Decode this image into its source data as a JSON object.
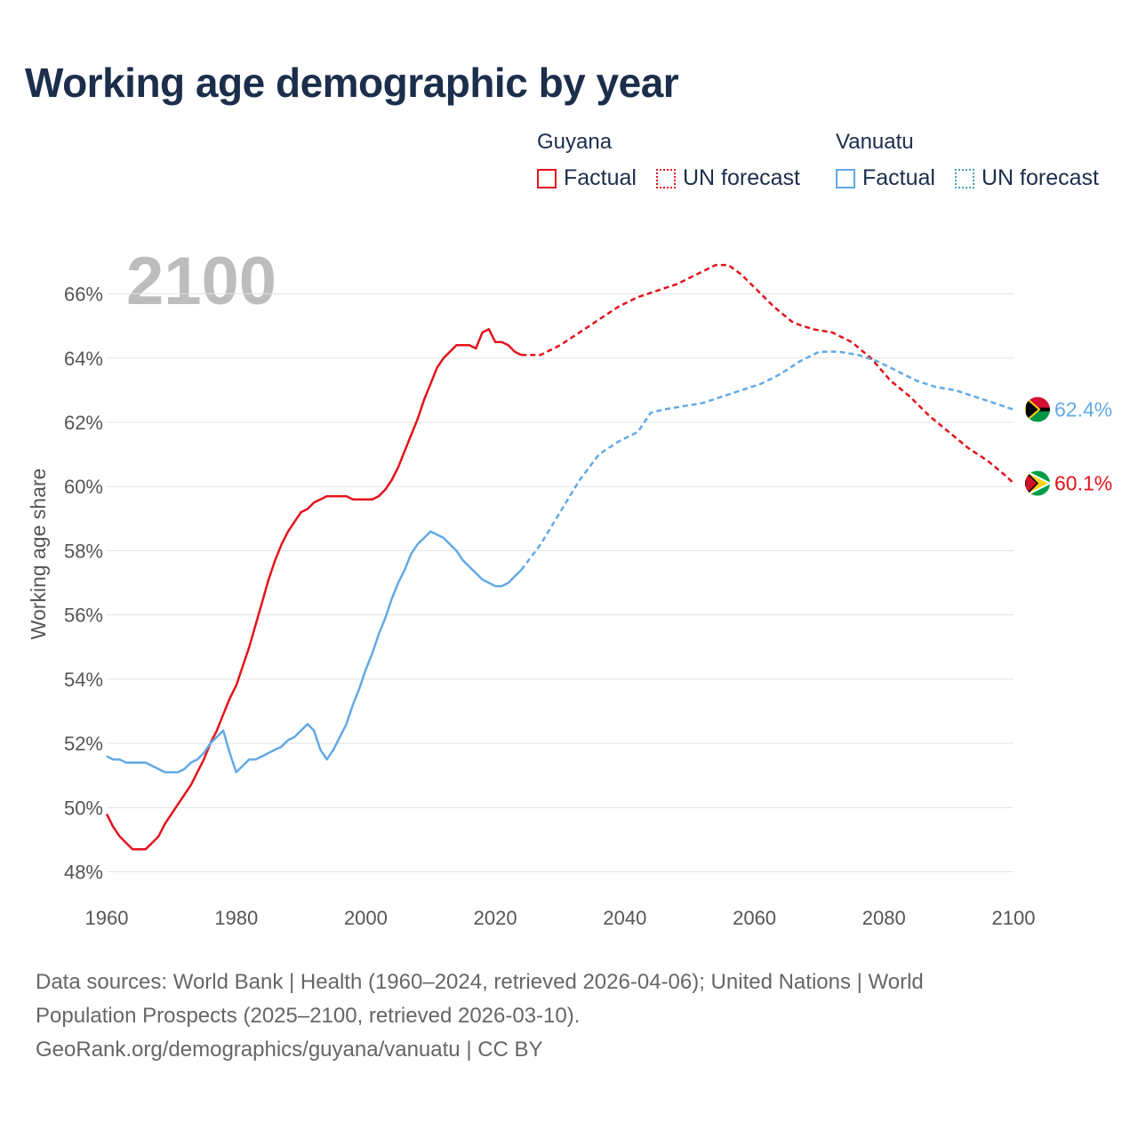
{
  "title": "Working age demographic by year",
  "legend": {
    "groups": [
      {
        "name": "Guyana",
        "factual_label": "Factual",
        "forecast_label": "UN forecast",
        "color": "#e3131b"
      },
      {
        "name": "Vanuatu",
        "factual_label": "Factual",
        "forecast_label": "UN forecast",
        "color": "#63a9e5"
      }
    ]
  },
  "footer": {
    "line1": "Data sources: World Bank | Health (1960–2024, retrieved 2026-04-06); United Nations | World",
    "line2": "Population Prospects (2025–2100, retrieved 2026-03-10).",
    "line3": "GeoRank.org/demographics/guyana/vanuatu | CC BY"
  },
  "chart_data": {
    "type": "line",
    "title": "Working age demographic by year",
    "current_year_label": "2100",
    "ylabel": "Working age share",
    "xlabel": "",
    "xlim": [
      1960,
      2100
    ],
    "ylim": [
      47.6,
      67.4
    ],
    "x_ticks": [
      1960,
      1980,
      2000,
      2020,
      2040,
      2060,
      2080,
      2100
    ],
    "x_tick_labels": [
      "1960",
      "1980",
      "2000",
      "2020",
      "2040",
      "2060",
      "2080",
      "2100"
    ],
    "y_ticks": [
      48,
      50,
      52,
      54,
      56,
      58,
      60,
      62,
      64,
      66
    ],
    "y_tick_labels": [
      "48%",
      "50%",
      "52%",
      "54%",
      "56%",
      "58%",
      "60%",
      "62%",
      "64%",
      "66%"
    ],
    "grid": "horizontal",
    "series": [
      {
        "name": "Guyana",
        "color": "#e3131b",
        "end_label": "60.1%",
        "factual": {
          "x": [
            1960,
            1961,
            1962,
            1963,
            1964,
            1965,
            1966,
            1967,
            1968,
            1969,
            1970,
            1971,
            1972,
            1973,
            1974,
            1975,
            1976,
            1977,
            1978,
            1979,
            1980,
            1981,
            1982,
            1983,
            1984,
            1985,
            1986,
            1987,
            1988,
            1989,
            1990,
            1991,
            1992,
            1993,
            1994,
            1995,
            1996,
            1997,
            1998,
            1999,
            2000,
            2001,
            2002,
            2003,
            2004,
            2005,
            2006,
            2007,
            2008,
            2009,
            2010,
            2011,
            2012,
            2013,
            2014,
            2015,
            2016,
            2017,
            2018,
            2019,
            2020,
            2021,
            2022,
            2023,
            2024
          ],
          "y": [
            49.8,
            49.4,
            49.1,
            48.9,
            48.7,
            48.7,
            48.7,
            48.9,
            49.1,
            49.5,
            49.8,
            50.1,
            50.4,
            50.7,
            51.1,
            51.5,
            52.0,
            52.4,
            52.9,
            53.4,
            53.8,
            54.4,
            55.0,
            55.7,
            56.4,
            57.1,
            57.7,
            58.2,
            58.6,
            58.9,
            59.2,
            59.3,
            59.5,
            59.6,
            59.7,
            59.7,
            59.7,
            59.7,
            59.6,
            59.6,
            59.6,
            59.6,
            59.7,
            59.9,
            60.2,
            60.6,
            61.1,
            61.6,
            62.1,
            62.7,
            63.2,
            63.7,
            64.0,
            64.2,
            64.4,
            64.4,
            64.4,
            64.3,
            64.8,
            64.9,
            64.5,
            64.5,
            64.4,
            64.2,
            64.1
          ],
          "y_note": "percent"
        },
        "forecast": {
          "x": [
            2024,
            2027,
            2030,
            2033,
            2036,
            2039,
            2042,
            2045,
            2048,
            2051,
            2054,
            2056,
            2058,
            2060,
            2063,
            2066,
            2069,
            2072,
            2075,
            2078,
            2081,
            2084,
            2087,
            2090,
            2093,
            2096,
            2099,
            2100
          ],
          "y": [
            64.1,
            64.1,
            64.4,
            64.8,
            65.2,
            65.6,
            65.9,
            66.1,
            66.3,
            66.6,
            66.9,
            66.9,
            66.6,
            66.2,
            65.6,
            65.1,
            64.9,
            64.8,
            64.5,
            64.0,
            63.3,
            62.8,
            62.2,
            61.7,
            61.2,
            60.8,
            60.3,
            60.1
          ]
        }
      },
      {
        "name": "Vanuatu",
        "color": "#63a9e5",
        "end_label": "62.4%",
        "factual": {
          "x": [
            1960,
            1961,
            1962,
            1963,
            1964,
            1965,
            1966,
            1967,
            1968,
            1969,
            1970,
            1971,
            1972,
            1973,
            1974,
            1975,
            1976,
            1977,
            1978,
            1979,
            1980,
            1981,
            1982,
            1983,
            1984,
            1985,
            1986,
            1987,
            1988,
            1989,
            1990,
            1991,
            1992,
            1993,
            1994,
            1995,
            1996,
            1997,
            1998,
            1999,
            2000,
            2001,
            2002,
            2003,
            2004,
            2005,
            2006,
            2007,
            2008,
            2009,
            2010,
            2011,
            2012,
            2013,
            2014,
            2015,
            2016,
            2017,
            2018,
            2019,
            2020,
            2021,
            2022,
            2023,
            2024
          ],
          "y": [
            51.6,
            51.5,
            51.5,
            51.4,
            51.4,
            51.4,
            51.4,
            51.3,
            51.2,
            51.1,
            51.1,
            51.1,
            51.2,
            51.4,
            51.5,
            51.7,
            52.0,
            52.2,
            52.4,
            51.7,
            51.1,
            51.3,
            51.5,
            51.5,
            51.6,
            51.7,
            51.8,
            51.9,
            52.1,
            52.2,
            52.4,
            52.6,
            52.4,
            51.8,
            51.5,
            51.8,
            52.2,
            52.6,
            53.2,
            53.7,
            54.3,
            54.8,
            55.4,
            55.9,
            56.5,
            57.0,
            57.4,
            57.9,
            58.2,
            58.4,
            58.6,
            58.5,
            58.4,
            58.2,
            58.0,
            57.7,
            57.5,
            57.3,
            57.1,
            57.0,
            56.9,
            56.9,
            57.0,
            57.2,
            57.4
          ],
          "y_note": "percent"
        },
        "forecast": {
          "x": [
            2024,
            2027,
            2030,
            2033,
            2036,
            2039,
            2042,
            2044,
            2046,
            2049,
            2052,
            2055,
            2058,
            2061,
            2064,
            2067,
            2070,
            2073,
            2076,
            2079,
            2082,
            2085,
            2088,
            2091,
            2094,
            2097,
            2100
          ],
          "y": [
            57.4,
            58.2,
            59.2,
            60.2,
            61.0,
            61.4,
            61.7,
            62.3,
            62.4,
            62.5,
            62.6,
            62.8,
            63.0,
            63.2,
            63.5,
            63.9,
            64.2,
            64.2,
            64.1,
            63.9,
            63.6,
            63.3,
            63.1,
            63.0,
            62.8,
            62.6,
            62.4
          ]
        }
      }
    ]
  }
}
